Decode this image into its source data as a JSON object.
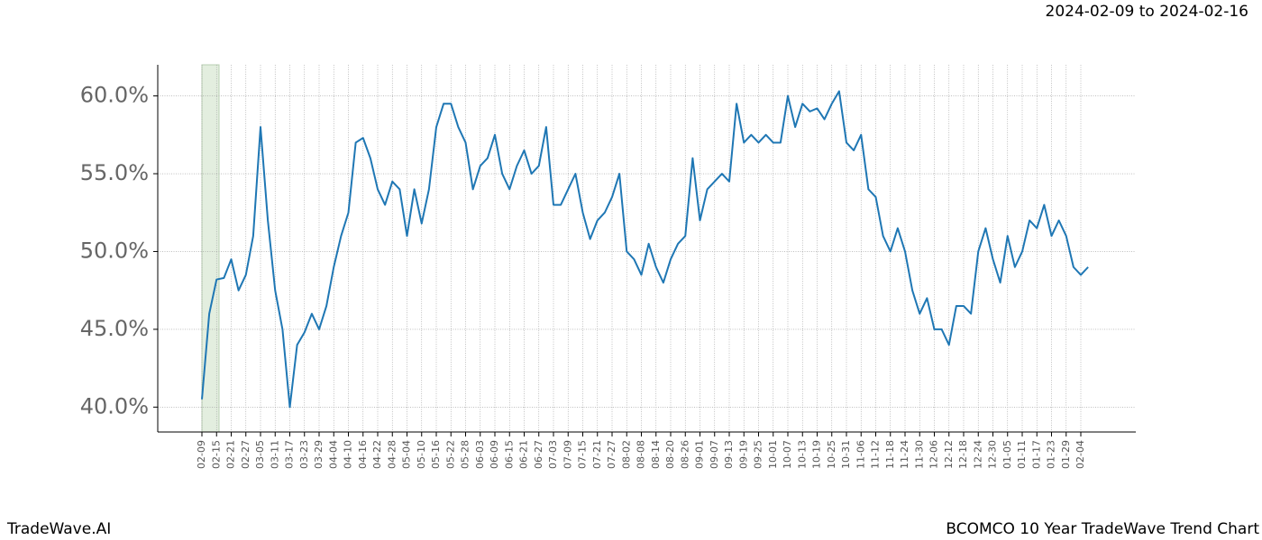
{
  "header": {
    "date_range": "2024-02-09 to 2024-02-16"
  },
  "chart_data": {
    "type": "line",
    "categories": [
      "02-09",
      null,
      "02-15",
      null,
      "02-21",
      null,
      "02-27",
      null,
      "03-05",
      null,
      "03-11",
      null,
      "03-17",
      null,
      "03-23",
      null,
      "03-29",
      null,
      "04-04",
      null,
      "04-10",
      null,
      "04-16",
      null,
      "04-22",
      null,
      "04-28",
      null,
      "05-04",
      null,
      "05-10",
      null,
      "05-16",
      null,
      "05-22",
      null,
      "05-28",
      null,
      "06-03",
      null,
      "06-09",
      null,
      "06-15",
      null,
      "06-21",
      null,
      "06-27",
      null,
      "07-03",
      null,
      "07-09",
      null,
      "07-15",
      null,
      "07-21",
      null,
      "07-27",
      null,
      "08-02",
      null,
      "08-08",
      null,
      "08-14",
      null,
      "08-20",
      null,
      "08-26",
      null,
      "09-01",
      null,
      "09-07",
      null,
      "09-13",
      null,
      "09-19",
      null,
      "09-25",
      null,
      "10-01",
      null,
      "10-07",
      null,
      "10-13",
      null,
      "10-19",
      null,
      "10-25",
      null,
      "10-31",
      null,
      "11-06",
      null,
      "11-12",
      null,
      "11-18",
      null,
      "11-24",
      null,
      "11-30",
      null,
      "12-06",
      null,
      "12-12",
      null,
      "12-18",
      null,
      "12-24",
      null,
      "12-30",
      null,
      "01-05",
      null,
      "01-11",
      null,
      "01-17",
      null,
      "01-23",
      null,
      "01-29",
      null,
      "02-04",
      null
    ],
    "values": [
      40.5,
      46,
      48.2,
      48.3,
      49.5,
      47.5,
      48.5,
      51,
      58,
      52,
      47.5,
      45,
      40,
      44,
      44.8,
      46,
      45,
      46.5,
      49,
      51,
      52.5,
      57,
      57.3,
      56,
      54,
      53,
      54.5,
      54,
      51,
      54,
      51.8,
      54,
      58,
      59.5,
      59.5,
      58,
      57,
      54,
      55.5,
      56,
      57.5,
      55,
      54,
      55.5,
      56.5,
      55,
      55.5,
      58,
      53,
      53,
      54,
      55,
      52.5,
      50.8,
      52,
      52.5,
      53.5,
      55,
      50,
      49.5,
      48.5,
      50.5,
      49,
      48,
      49.5,
      50.5,
      51,
      56,
      52,
      54,
      54.5,
      55,
      54.5,
      59.5,
      57,
      57.5,
      57,
      57.5,
      57,
      57,
      60,
      58,
      59.5,
      59,
      59.2,
      58.5,
      59.5,
      60.3,
      57,
      56.5,
      57.5,
      54,
      53.5,
      51,
      50,
      51.5,
      50,
      47.5,
      46,
      47,
      45,
      45,
      44,
      46.5,
      46.5,
      46,
      50,
      51.5,
      49.5,
      48,
      51,
      49,
      50,
      52,
      51.5,
      53,
      51,
      52,
      51,
      49,
      48.5,
      49
    ],
    "color": "#1f77b4",
    "ylim": [
      38.4,
      62.0
    ],
    "yticks": [
      {
        "value": 40,
        "label": "40.0%"
      },
      {
        "value": 45,
        "label": "45.0%"
      },
      {
        "value": 50,
        "label": "50.0%"
      },
      {
        "value": 55,
        "label": "55.0%"
      },
      {
        "value": 60,
        "label": "60.0%"
      }
    ],
    "grid": true
  },
  "footer": {
    "left": "TradeWave.AI",
    "right": "BCOMCO 10 Year TradeWave Trend Chart"
  }
}
